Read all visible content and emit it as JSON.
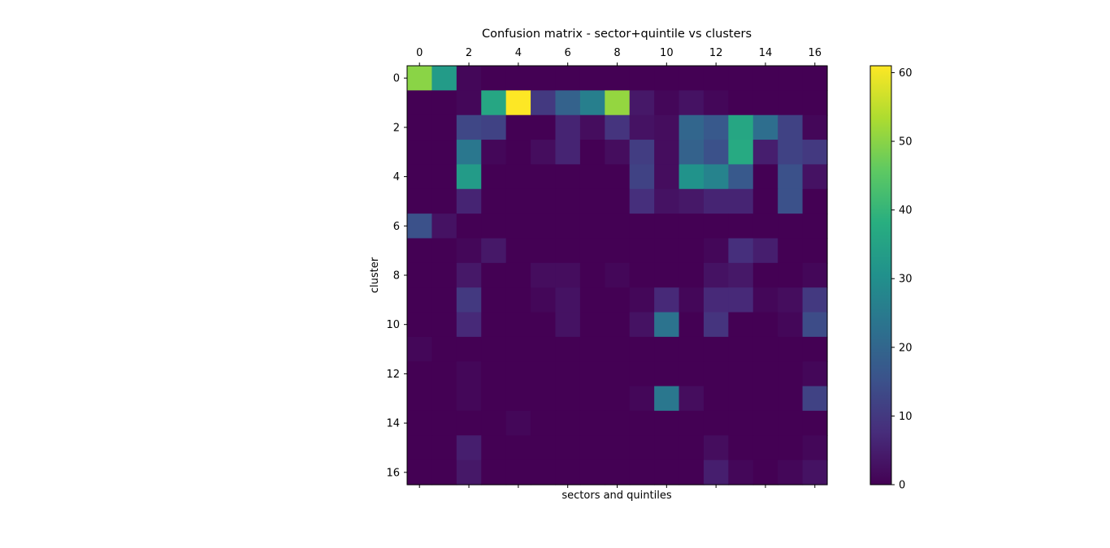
{
  "chart_data": {
    "type": "heatmap",
    "title": "Confusion matrix - sector+quintile vs clusters",
    "xlabel": "sectors and quintiles",
    "ylabel": "cluster",
    "rows": 17,
    "cols": 17,
    "x_ticks": [
      "0",
      "2",
      "4",
      "6",
      "8",
      "10",
      "12",
      "14",
      "16"
    ],
    "y_ticks": [
      "0",
      "2",
      "4",
      "6",
      "8",
      "10",
      "12",
      "14",
      "16"
    ],
    "colorbar": {
      "range": [
        0,
        61
      ],
      "ticks": [
        "0",
        "10",
        "20",
        "30",
        "40",
        "50",
        "60"
      ],
      "tick_values": [
        0,
        10,
        20,
        30,
        40,
        50,
        60
      ]
    },
    "matrix": [
      [
        50,
        33,
        1,
        0,
        0,
        0,
        0,
        0,
        0,
        0,
        0,
        0,
        0,
        0,
        0,
        0,
        0
      ],
      [
        0,
        0,
        1,
        36,
        61,
        10,
        19,
        26,
        51,
        4,
        1,
        3,
        1,
        0,
        0,
        0,
        0
      ],
      [
        0,
        0,
        13,
        12,
        0,
        0,
        6,
        2,
        9,
        3,
        2,
        20,
        17,
        36,
        22,
        12,
        1
      ],
      [
        0,
        0,
        24,
        1,
        0,
        2,
        6,
        0,
        2,
        11,
        2,
        19,
        15,
        37,
        5,
        12,
        10
      ],
      [
        0,
        0,
        33,
        0,
        0,
        0,
        0,
        0,
        0,
        12,
        2,
        31,
        27,
        17,
        0,
        15,
        3
      ],
      [
        0,
        0,
        6,
        0,
        0,
        0,
        0,
        0,
        0,
        8,
        3,
        4,
        6,
        6,
        0,
        15,
        0
      ],
      [
        15,
        3,
        0,
        0,
        0,
        0,
        0,
        0,
        0,
        0,
        0,
        0,
        0,
        0,
        0,
        0,
        0
      ],
      [
        0,
        0,
        1,
        4,
        0,
        0,
        0,
        0,
        0,
        0,
        0,
        0,
        1,
        8,
        5,
        0,
        0
      ],
      [
        0,
        0,
        4,
        0,
        0,
        2,
        2,
        0,
        1,
        0,
        0,
        0,
        3,
        4,
        0,
        0,
        1
      ],
      [
        0,
        0,
        10,
        0,
        0,
        1,
        3,
        0,
        0,
        1,
        7,
        1,
        7,
        7,
        1,
        2,
        10
      ],
      [
        0,
        0,
        7,
        0,
        0,
        0,
        3,
        0,
        0,
        3,
        23,
        0,
        9,
        0,
        0,
        1,
        14
      ],
      [
        1,
        0,
        0,
        0,
        0,
        0,
        0,
        0,
        0,
        0,
        0,
        0,
        0,
        0,
        0,
        0,
        0
      ],
      [
        0,
        0,
        1,
        0,
        0,
        0,
        0,
        0,
        0,
        0,
        0,
        0,
        0,
        0,
        0,
        0,
        1
      ],
      [
        0,
        0,
        1,
        0,
        0,
        0,
        0,
        0,
        0,
        1,
        24,
        2,
        0,
        0,
        0,
        0,
        12
      ],
      [
        0,
        0,
        0,
        0,
        1,
        0,
        0,
        0,
        0,
        0,
        0,
        0,
        0,
        0,
        0,
        0,
        0
      ],
      [
        0,
        0,
        5,
        0,
        0,
        0,
        0,
        0,
        0,
        0,
        0,
        0,
        2,
        0,
        0,
        0,
        1
      ],
      [
        0,
        0,
        4,
        0,
        0,
        0,
        0,
        0,
        0,
        0,
        0,
        0,
        5,
        1,
        0,
        1,
        3
      ]
    ]
  }
}
